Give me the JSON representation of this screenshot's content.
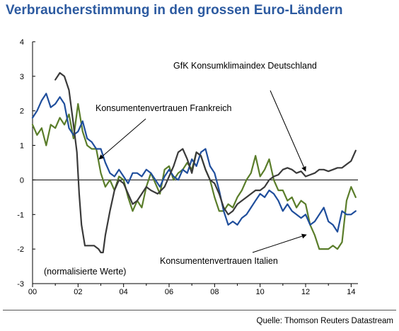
{
  "title": "Verbraucherstimmung in den grossen Euro-Ländern",
  "source": "Quelle: Thomson Reuters Datastream",
  "chart_data": {
    "type": "line",
    "xlim": [
      2000,
      2014.3
    ],
    "ylim": [
      -3,
      4
    ],
    "x_ticks": [
      {
        "value": 2000,
        "label": "00"
      },
      {
        "value": 2002,
        "label": "02"
      },
      {
        "value": 2004,
        "label": "04"
      },
      {
        "value": 2006,
        "label": "06"
      },
      {
        "value": 2008,
        "label": "08"
      },
      {
        "value": 2010,
        "label": "10"
      },
      {
        "value": 2012,
        "label": "12"
      },
      {
        "value": 2014,
        "label": "14"
      }
    ],
    "y_ticks": [
      4,
      3,
      2,
      1,
      0,
      -1,
      -2,
      -3
    ],
    "zero_line": true,
    "annotations": {
      "de": "GfK Konsumklimaindex Deutschland",
      "fr": "Konsumentenvertrauen Frankreich",
      "it": "Konsumentenvertrauen Italien",
      "note": "(normalisierte Werte)"
    },
    "colors": {
      "de": "#3a3a3a",
      "fr": "#1f4e9c",
      "it": "#5a7d2a"
    },
    "series": [
      {
        "key": "de",
        "x": [
          2001.0,
          2001.2,
          2001.4,
          2001.6,
          2001.8,
          2001.95,
          2002.05,
          2002.15,
          2002.3,
          2002.5,
          2002.7,
          2002.9,
          2003.0,
          2003.1,
          2003.2,
          2003.4,
          2003.6,
          2003.8,
          2004.0,
          2004.2,
          2004.4,
          2004.6,
          2004.8,
          2005.0,
          2005.2,
          2005.5,
          2005.8,
          2006.0,
          2006.2,
          2006.4,
          2006.6,
          2006.8,
          2007.0,
          2007.2,
          2007.4,
          2007.6,
          2007.8,
          2008.0,
          2008.2,
          2008.4,
          2008.6,
          2008.8,
          2009.0,
          2009.2,
          2009.4,
          2009.6,
          2009.8,
          2010.0,
          2010.2,
          2010.4,
          2010.6,
          2010.8,
          2011.0,
          2011.2,
          2011.4,
          2011.6,
          2011.8,
          2012.0,
          2012.2,
          2012.4,
          2012.6,
          2012.8,
          2013.0,
          2013.2,
          2013.4,
          2013.6,
          2013.8,
          2014.0,
          2014.2
        ],
        "values": [
          2.9,
          3.1,
          3.0,
          2.6,
          1.6,
          0.8,
          -0.4,
          -1.3,
          -1.9,
          -1.9,
          -1.9,
          -2.0,
          -2.1,
          -2.1,
          -1.6,
          -0.9,
          -0.3,
          0.0,
          -0.1,
          -0.4,
          -0.7,
          -0.6,
          -0.4,
          -0.2,
          -0.3,
          -0.4,
          -0.2,
          0.1,
          0.4,
          0.8,
          0.9,
          0.6,
          0.2,
          0.8,
          0.7,
          0.3,
          0.0,
          -0.1,
          -0.4,
          -0.8,
          -1.0,
          -0.9,
          -0.7,
          -0.6,
          -0.5,
          -0.4,
          -0.3,
          -0.3,
          -0.2,
          0.0,
          0.1,
          0.15,
          0.3,
          0.35,
          0.3,
          0.2,
          0.25,
          0.1,
          0.15,
          0.2,
          0.3,
          0.3,
          0.25,
          0.3,
          0.35,
          0.35,
          0.45,
          0.55,
          0.85
        ]
      },
      {
        "key": "fr",
        "x": [
          2000.0,
          2000.2,
          2000.4,
          2000.6,
          2000.8,
          2001.0,
          2001.2,
          2001.4,
          2001.6,
          2001.8,
          2002.0,
          2002.2,
          2002.4,
          2002.6,
          2002.8,
          2003.0,
          2003.2,
          2003.4,
          2003.6,
          2003.8,
          2004.0,
          2004.2,
          2004.4,
          2004.6,
          2004.8,
          2005.0,
          2005.2,
          2005.4,
          2005.6,
          2005.8,
          2006.0,
          2006.2,
          2006.4,
          2006.6,
          2006.8,
          2007.0,
          2007.2,
          2007.4,
          2007.6,
          2007.8,
          2008.0,
          2008.2,
          2008.4,
          2008.6,
          2008.8,
          2009.0,
          2009.2,
          2009.4,
          2009.6,
          2009.8,
          2010.0,
          2010.2,
          2010.4,
          2010.6,
          2010.8,
          2011.0,
          2011.2,
          2011.4,
          2011.6,
          2011.8,
          2012.0,
          2012.2,
          2012.4,
          2012.6,
          2012.8,
          2013.0,
          2013.2,
          2013.4,
          2013.6,
          2013.8,
          2014.0,
          2014.2
        ],
        "values": [
          1.8,
          2.0,
          2.3,
          2.5,
          2.1,
          2.2,
          2.4,
          2.2,
          1.5,
          1.3,
          1.4,
          1.7,
          1.2,
          1.1,
          0.9,
          0.9,
          0.5,
          0.2,
          0.1,
          0.3,
          0.1,
          -0.1,
          0.2,
          0.2,
          0.1,
          0.3,
          0.2,
          0.0,
          -0.2,
          0.1,
          0.3,
          0.1,
          0.0,
          0.3,
          0.2,
          0.6,
          0.4,
          0.8,
          0.9,
          0.4,
          0.2,
          -0.3,
          -0.9,
          -1.3,
          -1.2,
          -1.3,
          -1.1,
          -1.0,
          -0.8,
          -0.6,
          -0.4,
          -0.5,
          -0.3,
          -0.4,
          -0.6,
          -0.9,
          -0.7,
          -0.9,
          -1.0,
          -1.1,
          -1.0,
          -1.3,
          -1.2,
          -1.0,
          -0.8,
          -1.2,
          -1.3,
          -1.5,
          -0.9,
          -1.0,
          -1.0,
          -0.9
        ]
      },
      {
        "key": "it",
        "x": [
          2000.0,
          2000.2,
          2000.4,
          2000.6,
          2000.8,
          2001.0,
          2001.2,
          2001.4,
          2001.6,
          2001.8,
          2002.0,
          2002.2,
          2002.4,
          2002.6,
          2002.8,
          2003.0,
          2003.2,
          2003.4,
          2003.6,
          2003.8,
          2004.0,
          2004.2,
          2004.4,
          2004.6,
          2004.8,
          2005.0,
          2005.2,
          2005.4,
          2005.6,
          2005.8,
          2006.0,
          2006.2,
          2006.4,
          2006.6,
          2006.8,
          2007.0,
          2007.2,
          2007.4,
          2007.6,
          2007.8,
          2008.0,
          2008.2,
          2008.4,
          2008.6,
          2008.8,
          2009.0,
          2009.2,
          2009.4,
          2009.6,
          2009.8,
          2010.0,
          2010.2,
          2010.4,
          2010.6,
          2010.8,
          2011.0,
          2011.2,
          2011.4,
          2011.6,
          2011.8,
          2012.0,
          2012.2,
          2012.4,
          2012.6,
          2012.8,
          2013.0,
          2013.2,
          2013.4,
          2013.6,
          2013.8,
          2014.0,
          2014.2
        ],
        "values": [
          1.6,
          1.3,
          1.5,
          1.0,
          1.6,
          1.5,
          1.8,
          1.6,
          1.9,
          1.2,
          2.2,
          1.4,
          1.0,
          0.9,
          0.9,
          0.2,
          -0.2,
          0.0,
          -0.3,
          0.1,
          0.0,
          -0.5,
          -0.9,
          -0.6,
          -0.8,
          -0.2,
          0.2,
          -0.1,
          -0.4,
          0.3,
          0.4,
          0.0,
          0.2,
          0.3,
          0.5,
          0.3,
          0.8,
          0.7,
          0.3,
          0.0,
          -0.5,
          -0.9,
          -0.9,
          -0.7,
          -0.8,
          -0.5,
          -0.3,
          0.0,
          0.2,
          0.7,
          0.1,
          0.3,
          0.6,
          0.0,
          -0.3,
          -0.3,
          -0.6,
          -0.5,
          -0.8,
          -0.6,
          -0.7,
          -1.3,
          -1.6,
          -2.0,
          -2.0,
          -2.0,
          -1.9,
          -2.0,
          -1.8,
          -0.6,
          -0.2,
          -0.5
        ]
      }
    ]
  }
}
